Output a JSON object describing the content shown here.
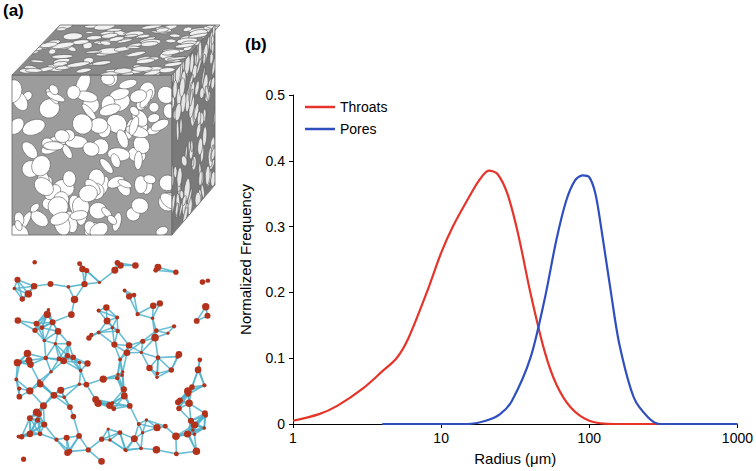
{
  "panels": {
    "a": {
      "label": "(a)"
    }
  },
  "chart_data": {
    "label": "(b)",
    "type": "line",
    "xlabel": "Radius (μm)",
    "ylabel": "Normalized Frequency",
    "log": "x",
    "xlim": [
      1,
      1000
    ],
    "xticks": [
      1,
      10,
      100,
      1000
    ],
    "ylim": [
      0,
      0.5
    ],
    "yticks": [
      0,
      0.1,
      0.2,
      0.3,
      0.4,
      0.5
    ],
    "grid": false,
    "legend": "upper left",
    "series": [
      {
        "name": "Throats",
        "color": "#e5342a",
        "x": [
          1,
          1.5,
          2,
          3,
          4,
          5,
          6,
          8,
          10,
          12,
          15,
          18,
          21,
          24,
          28,
          33,
          40,
          50,
          60,
          75,
          100,
          150,
          1000
        ],
        "values": [
          0.005,
          0.015,
          0.028,
          0.055,
          0.08,
          0.1,
          0.13,
          0.2,
          0.26,
          0.3,
          0.34,
          0.37,
          0.385,
          0.38,
          0.35,
          0.29,
          0.2,
          0.11,
          0.06,
          0.025,
          0.005,
          0,
          0
        ]
      },
      {
        "name": "Pores",
        "color": "#2f4fbf",
        "x": [
          4,
          15,
          20,
          25,
          30,
          40,
          50,
          60,
          70,
          80,
          90,
          100,
          110,
          120,
          140,
          160,
          200,
          250,
          300,
          1000
        ],
        "values": [
          0,
          0,
          0.005,
          0.015,
          0.035,
          0.1,
          0.19,
          0.28,
          0.34,
          0.37,
          0.378,
          0.375,
          0.35,
          0.3,
          0.2,
          0.12,
          0.04,
          0.01,
          0,
          0
        ]
      }
    ]
  }
}
